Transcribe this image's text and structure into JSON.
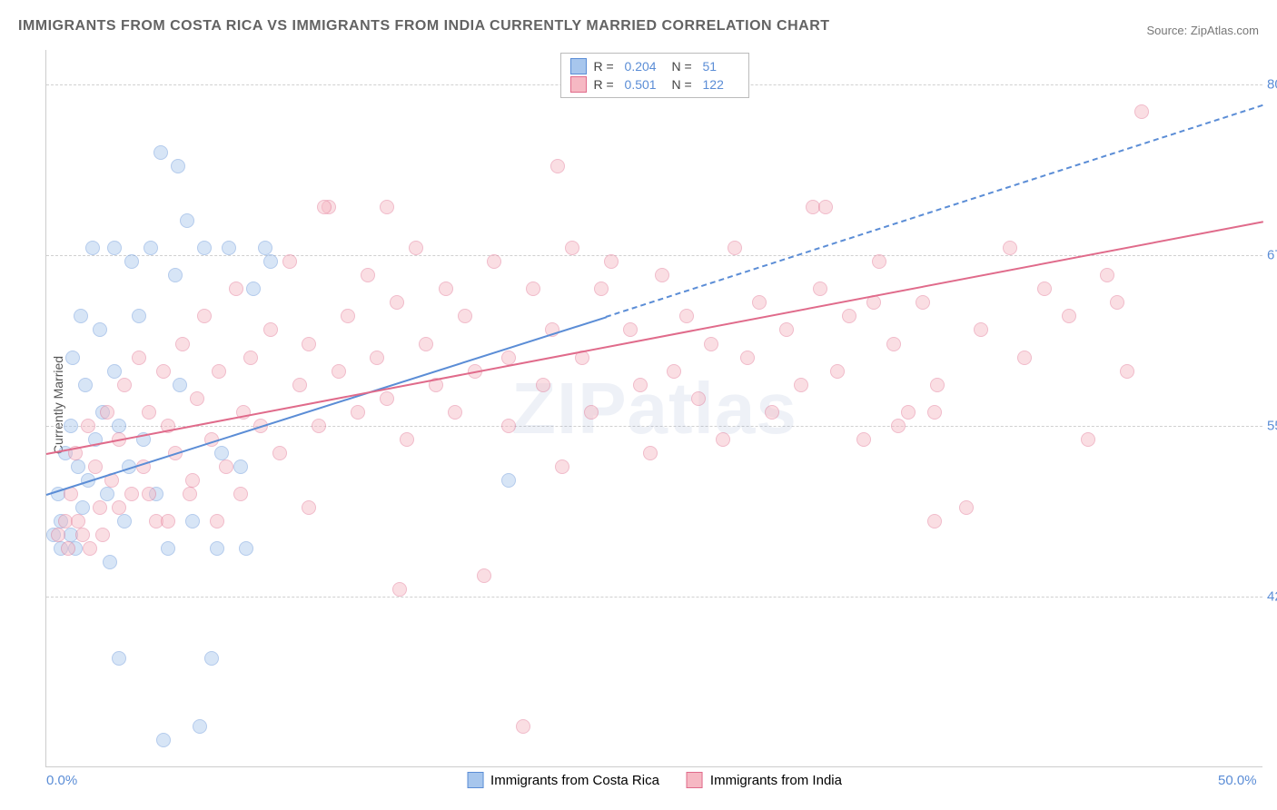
{
  "chart": {
    "type": "scatter",
    "title": "IMMIGRANTS FROM COSTA RICA VS IMMIGRANTS FROM INDIA CURRENTLY MARRIED CORRELATION CHART",
    "source_label": "Source: ",
    "source_value": "ZipAtlas.com",
    "ylabel": "Currently Married",
    "watermark": "ZIPatlas",
    "background_color": "#ffffff",
    "grid_color": "#d0d0d0",
    "axis_text_color": "#5b8dd6",
    "title_color": "#636363",
    "title_fontsize": 16,
    "label_fontsize": 14,
    "tick_fontsize": 15,
    "xlim": [
      0,
      50
    ],
    "ylim": [
      30,
      82.5
    ],
    "ytick_values": [
      42.5,
      55.0,
      67.5,
      80.0
    ],
    "ytick_labels": [
      "42.5%",
      "55.0%",
      "67.5%",
      "80.0%"
    ],
    "xtick_values": [
      0,
      50
    ],
    "xtick_labels": [
      "0.0%",
      "50.0%"
    ],
    "marker_radius": 8,
    "marker_opacity": 0.45,
    "line_width": 2,
    "series": [
      {
        "name": "Immigrants from Costa Rica",
        "color_fill": "#a7c6ed",
        "color_stroke": "#5b8dd6",
        "R": "0.204",
        "N": "51",
        "trend": {
          "x1": 0,
          "y1": 50,
          "x2": 23,
          "y2": 63,
          "dash_x2": 50,
          "dash_y2": 78.5
        },
        "points": [
          [
            0.3,
            47
          ],
          [
            0.5,
            50
          ],
          [
            0.6,
            48
          ],
          [
            0.8,
            53
          ],
          [
            1.0,
            47
          ],
          [
            1.0,
            55
          ],
          [
            1.1,
            60
          ],
          [
            1.3,
            52
          ],
          [
            1.4,
            63
          ],
          [
            1.5,
            49
          ],
          [
            1.6,
            58
          ],
          [
            1.7,
            51
          ],
          [
            1.9,
            68
          ],
          [
            2.0,
            54
          ],
          [
            2.2,
            62
          ],
          [
            2.3,
            56
          ],
          [
            2.5,
            50
          ],
          [
            2.6,
            45
          ],
          [
            2.8,
            59
          ],
          [
            3.0,
            55
          ],
          [
            3.2,
            48
          ],
          [
            3.4,
            52
          ],
          [
            3.5,
            67
          ],
          [
            3.8,
            63
          ],
          [
            4.0,
            54
          ],
          [
            4.3,
            68
          ],
          [
            4.5,
            50
          ],
          [
            4.7,
            75
          ],
          [
            5.0,
            46
          ],
          [
            5.3,
            66
          ],
          [
            5.5,
            58
          ],
          [
            5.8,
            70
          ],
          [
            6.0,
            48
          ],
          [
            6.3,
            33
          ],
          [
            6.5,
            68
          ],
          [
            6.8,
            38
          ],
          [
            7.0,
            46
          ],
          [
            7.2,
            53
          ],
          [
            7.5,
            68
          ],
          [
            8.0,
            52
          ],
          [
            8.2,
            46
          ],
          [
            8.5,
            65
          ],
          [
            9.0,
            68
          ],
          [
            9.2,
            67
          ],
          [
            5.4,
            74
          ],
          [
            3.0,
            38
          ],
          [
            4.8,
            32
          ],
          [
            2.8,
            68
          ],
          [
            1.2,
            46
          ],
          [
            0.6,
            46
          ],
          [
            19.0,
            51
          ]
        ]
      },
      {
        "name": "Immigrants from India",
        "color_fill": "#f6b8c3",
        "color_stroke": "#e06b8b",
        "R": "0.501",
        "N": "122",
        "trend": {
          "x1": 0,
          "y1": 53,
          "x2": 50,
          "y2": 70
        },
        "points": [
          [
            0.5,
            47
          ],
          [
            0.8,
            48
          ],
          [
            1.0,
            50
          ],
          [
            1.2,
            53
          ],
          [
            1.5,
            47
          ],
          [
            1.7,
            55
          ],
          [
            2.0,
            52
          ],
          [
            2.2,
            49
          ],
          [
            2.5,
            56
          ],
          [
            2.7,
            51
          ],
          [
            3.0,
            54
          ],
          [
            3.2,
            58
          ],
          [
            3.5,
            50
          ],
          [
            3.8,
            60
          ],
          [
            4.0,
            52
          ],
          [
            4.2,
            56
          ],
          [
            4.5,
            48
          ],
          [
            4.8,
            59
          ],
          [
            5.0,
            55
          ],
          [
            5.3,
            53
          ],
          [
            5.6,
            61
          ],
          [
            5.9,
            50
          ],
          [
            6.2,
            57
          ],
          [
            6.5,
            63
          ],
          [
            6.8,
            54
          ],
          [
            7.1,
            59
          ],
          [
            7.4,
            52
          ],
          [
            7.8,
            65
          ],
          [
            8.1,
            56
          ],
          [
            8.4,
            60
          ],
          [
            8.8,
            55
          ],
          [
            9.2,
            62
          ],
          [
            9.6,
            53
          ],
          [
            10.0,
            67
          ],
          [
            10.4,
            58
          ],
          [
            10.8,
            61
          ],
          [
            11.2,
            55
          ],
          [
            11.6,
            71
          ],
          [
            12.0,
            59
          ],
          [
            12.4,
            63
          ],
          [
            12.8,
            56
          ],
          [
            13.2,
            66
          ],
          [
            13.6,
            60
          ],
          [
            14.0,
            57
          ],
          [
            14.4,
            64
          ],
          [
            14.8,
            54
          ],
          [
            15.2,
            68
          ],
          [
            15.6,
            61
          ],
          [
            16.0,
            58
          ],
          [
            16.4,
            65
          ],
          [
            16.8,
            56
          ],
          [
            17.2,
            63
          ],
          [
            17.6,
            59
          ],
          [
            18.0,
            44
          ],
          [
            18.4,
            67
          ],
          [
            19.0,
            60
          ],
          [
            14.0,
            71
          ],
          [
            19.0,
            55
          ],
          [
            19.6,
            33
          ],
          [
            20.0,
            65
          ],
          [
            20.4,
            58
          ],
          [
            20.8,
            62
          ],
          [
            21.2,
            52
          ],
          [
            21.6,
            68
          ],
          [
            22.0,
            60
          ],
          [
            22.4,
            56
          ],
          [
            22.8,
            65
          ],
          [
            23.2,
            67
          ],
          [
            21.0,
            74
          ],
          [
            24.0,
            62
          ],
          [
            24.4,
            58
          ],
          [
            24.8,
            53
          ],
          [
            25.3,
            66
          ],
          [
            25.8,
            59
          ],
          [
            26.3,
            63
          ],
          [
            26.8,
            57
          ],
          [
            27.3,
            61
          ],
          [
            27.8,
            54
          ],
          [
            28.3,
            68
          ],
          [
            28.8,
            60
          ],
          [
            29.3,
            64
          ],
          [
            29.8,
            56
          ],
          [
            30.4,
            62
          ],
          [
            31.0,
            58
          ],
          [
            31.5,
            71
          ],
          [
            31.8,
            65
          ],
          [
            32.0,
            71
          ],
          [
            32.5,
            59
          ],
          [
            33.0,
            63
          ],
          [
            33.6,
            54
          ],
          [
            34.2,
            67
          ],
          [
            34.8,
            61
          ],
          [
            35.4,
            56
          ],
          [
            36.0,
            64
          ],
          [
            36.6,
            58
          ],
          [
            36.5,
            48
          ],
          [
            37.8,
            49
          ],
          [
            38.4,
            62
          ],
          [
            35.0,
            55
          ],
          [
            39.6,
            68
          ],
          [
            40.2,
            60
          ],
          [
            41.0,
            65
          ],
          [
            45.0,
            78
          ],
          [
            42.0,
            63
          ],
          [
            42.8,
            54
          ],
          [
            43.6,
            66
          ],
          [
            44.4,
            59
          ],
          [
            44.0,
            64
          ],
          [
            34.0,
            64
          ],
          [
            36.5,
            56
          ],
          [
            14.5,
            43
          ],
          [
            10.8,
            49
          ],
          [
            1.8,
            46
          ],
          [
            0.9,
            46
          ],
          [
            1.3,
            48
          ],
          [
            2.3,
            47
          ],
          [
            11.4,
            71
          ],
          [
            5.0,
            48
          ],
          [
            6.0,
            51
          ],
          [
            7.0,
            48
          ],
          [
            8.0,
            50
          ],
          [
            4.2,
            50
          ],
          [
            3.0,
            49
          ]
        ]
      }
    ],
    "legend_bottom": [
      {
        "label": "Immigrants from Costa Rica",
        "fill": "#a7c6ed",
        "stroke": "#5b8dd6"
      },
      {
        "label": "Immigrants from India",
        "fill": "#f6b8c3",
        "stroke": "#e06b8b"
      }
    ]
  }
}
